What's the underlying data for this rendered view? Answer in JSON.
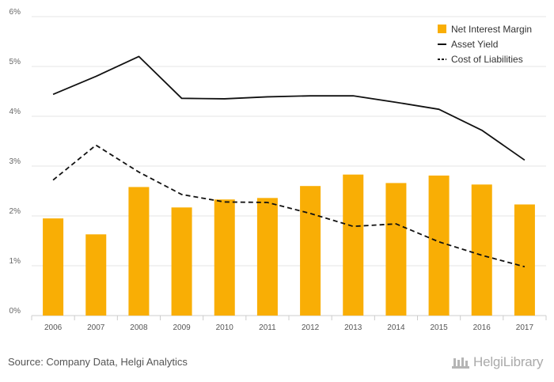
{
  "chart_data": {
    "type": "bar",
    "categories": [
      "2006",
      "2007",
      "2008",
      "2009",
      "2010",
      "2011",
      "2012",
      "2013",
      "2014",
      "2015",
      "2016",
      "2017"
    ],
    "series": [
      {
        "name": "Net Interest Margin",
        "kind": "bar",
        "values": [
          1.95,
          1.63,
          2.58,
          2.17,
          2.33,
          2.36,
          2.6,
          2.83,
          2.66,
          2.81,
          2.63,
          2.23
        ]
      },
      {
        "name": "Asset Yield",
        "kind": "line",
        "dash": "solid",
        "values": [
          4.44,
          4.8,
          5.2,
          4.36,
          4.35,
          4.39,
          4.41,
          4.41,
          4.28,
          4.14,
          3.72,
          3.12
        ]
      },
      {
        "name": "Cost of Liabilities",
        "kind": "line",
        "dash": "dashed",
        "values": [
          2.72,
          3.42,
          2.88,
          2.43,
          2.28,
          2.27,
          2.05,
          1.79,
          1.84,
          1.48,
          1.21,
          0.98
        ]
      }
    ],
    "y_ticks": [
      "0%",
      "1%",
      "2%",
      "3%",
      "4%",
      "5%",
      "6%"
    ],
    "ylim": [
      0,
      6
    ],
    "grid": true,
    "legend_position": "top-right",
    "colors": {
      "bar": "#F9AE05",
      "line": "#111111",
      "grid": "#e6e6e6",
      "axis_text": "#666666"
    }
  },
  "footer": {
    "source": "Source: Company Data, Helgi Analytics",
    "brand": "HelgiLibrary"
  }
}
